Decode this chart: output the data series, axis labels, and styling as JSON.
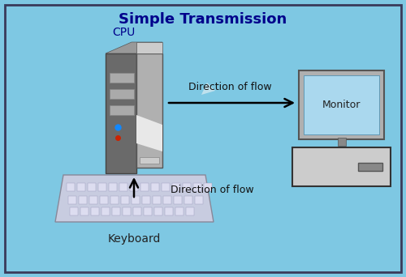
{
  "title": "Simple Transmission",
  "bg_color": "#7ec8e3",
  "border_color": "#3a3a5a",
  "title_color": "#00008B",
  "label_cpu": "CPU",
  "label_keyboard": "Keyboard",
  "label_monitor": "Monitor",
  "label_flow1": "Direction of flow",
  "label_flow2": "Direction of flow",
  "figw": 5.0,
  "figh": 3.42,
  "dpi": 100
}
